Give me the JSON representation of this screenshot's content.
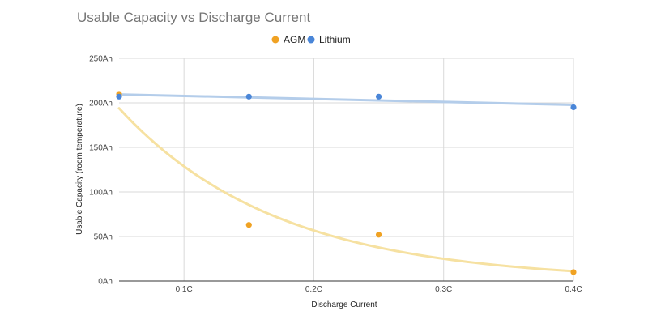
{
  "chart_data": {
    "type": "scatter",
    "title": "Usable Capacity vs Discharge Current",
    "xlabel": "Discharge Current",
    "ylabel": "Usable Capacity (room temperature)",
    "xlim": [
      0.05,
      0.4
    ],
    "ylim": [
      0,
      250
    ],
    "x_ticks": [
      {
        "value": 0.1,
        "label": "0.1C"
      },
      {
        "value": 0.2,
        "label": "0.2C"
      },
      {
        "value": 0.3,
        "label": "0.3C"
      },
      {
        "value": 0.4,
        "label": "0.4C"
      }
    ],
    "y_ticks": [
      {
        "value": 0,
        "label": "0Ah"
      },
      {
        "value": 50,
        "label": "50Ah"
      },
      {
        "value": 100,
        "label": "100Ah"
      },
      {
        "value": 150,
        "label": "150Ah"
      },
      {
        "value": 200,
        "label": "200Ah"
      },
      {
        "value": 250,
        "label": "250Ah"
      }
    ],
    "grid": true,
    "legend_position": "top",
    "series": [
      {
        "name": "AGM",
        "color": "#f0a223",
        "trend_color": "#f6e1a1",
        "trendline": "exponential",
        "points": [
          {
            "x": 0.05,
            "y": 210
          },
          {
            "x": 0.15,
            "y": 63
          },
          {
            "x": 0.25,
            "y": 52
          },
          {
            "x": 0.4,
            "y": 10
          }
        ]
      },
      {
        "name": "Lithium",
        "color": "#4a86d8",
        "trend_color": "#b4cdea",
        "trendline": "linear",
        "points": [
          {
            "x": 0.05,
            "y": 207
          },
          {
            "x": 0.15,
            "y": 207
          },
          {
            "x": 0.25,
            "y": 207
          },
          {
            "x": 0.4,
            "y": 195
          }
        ]
      }
    ]
  }
}
